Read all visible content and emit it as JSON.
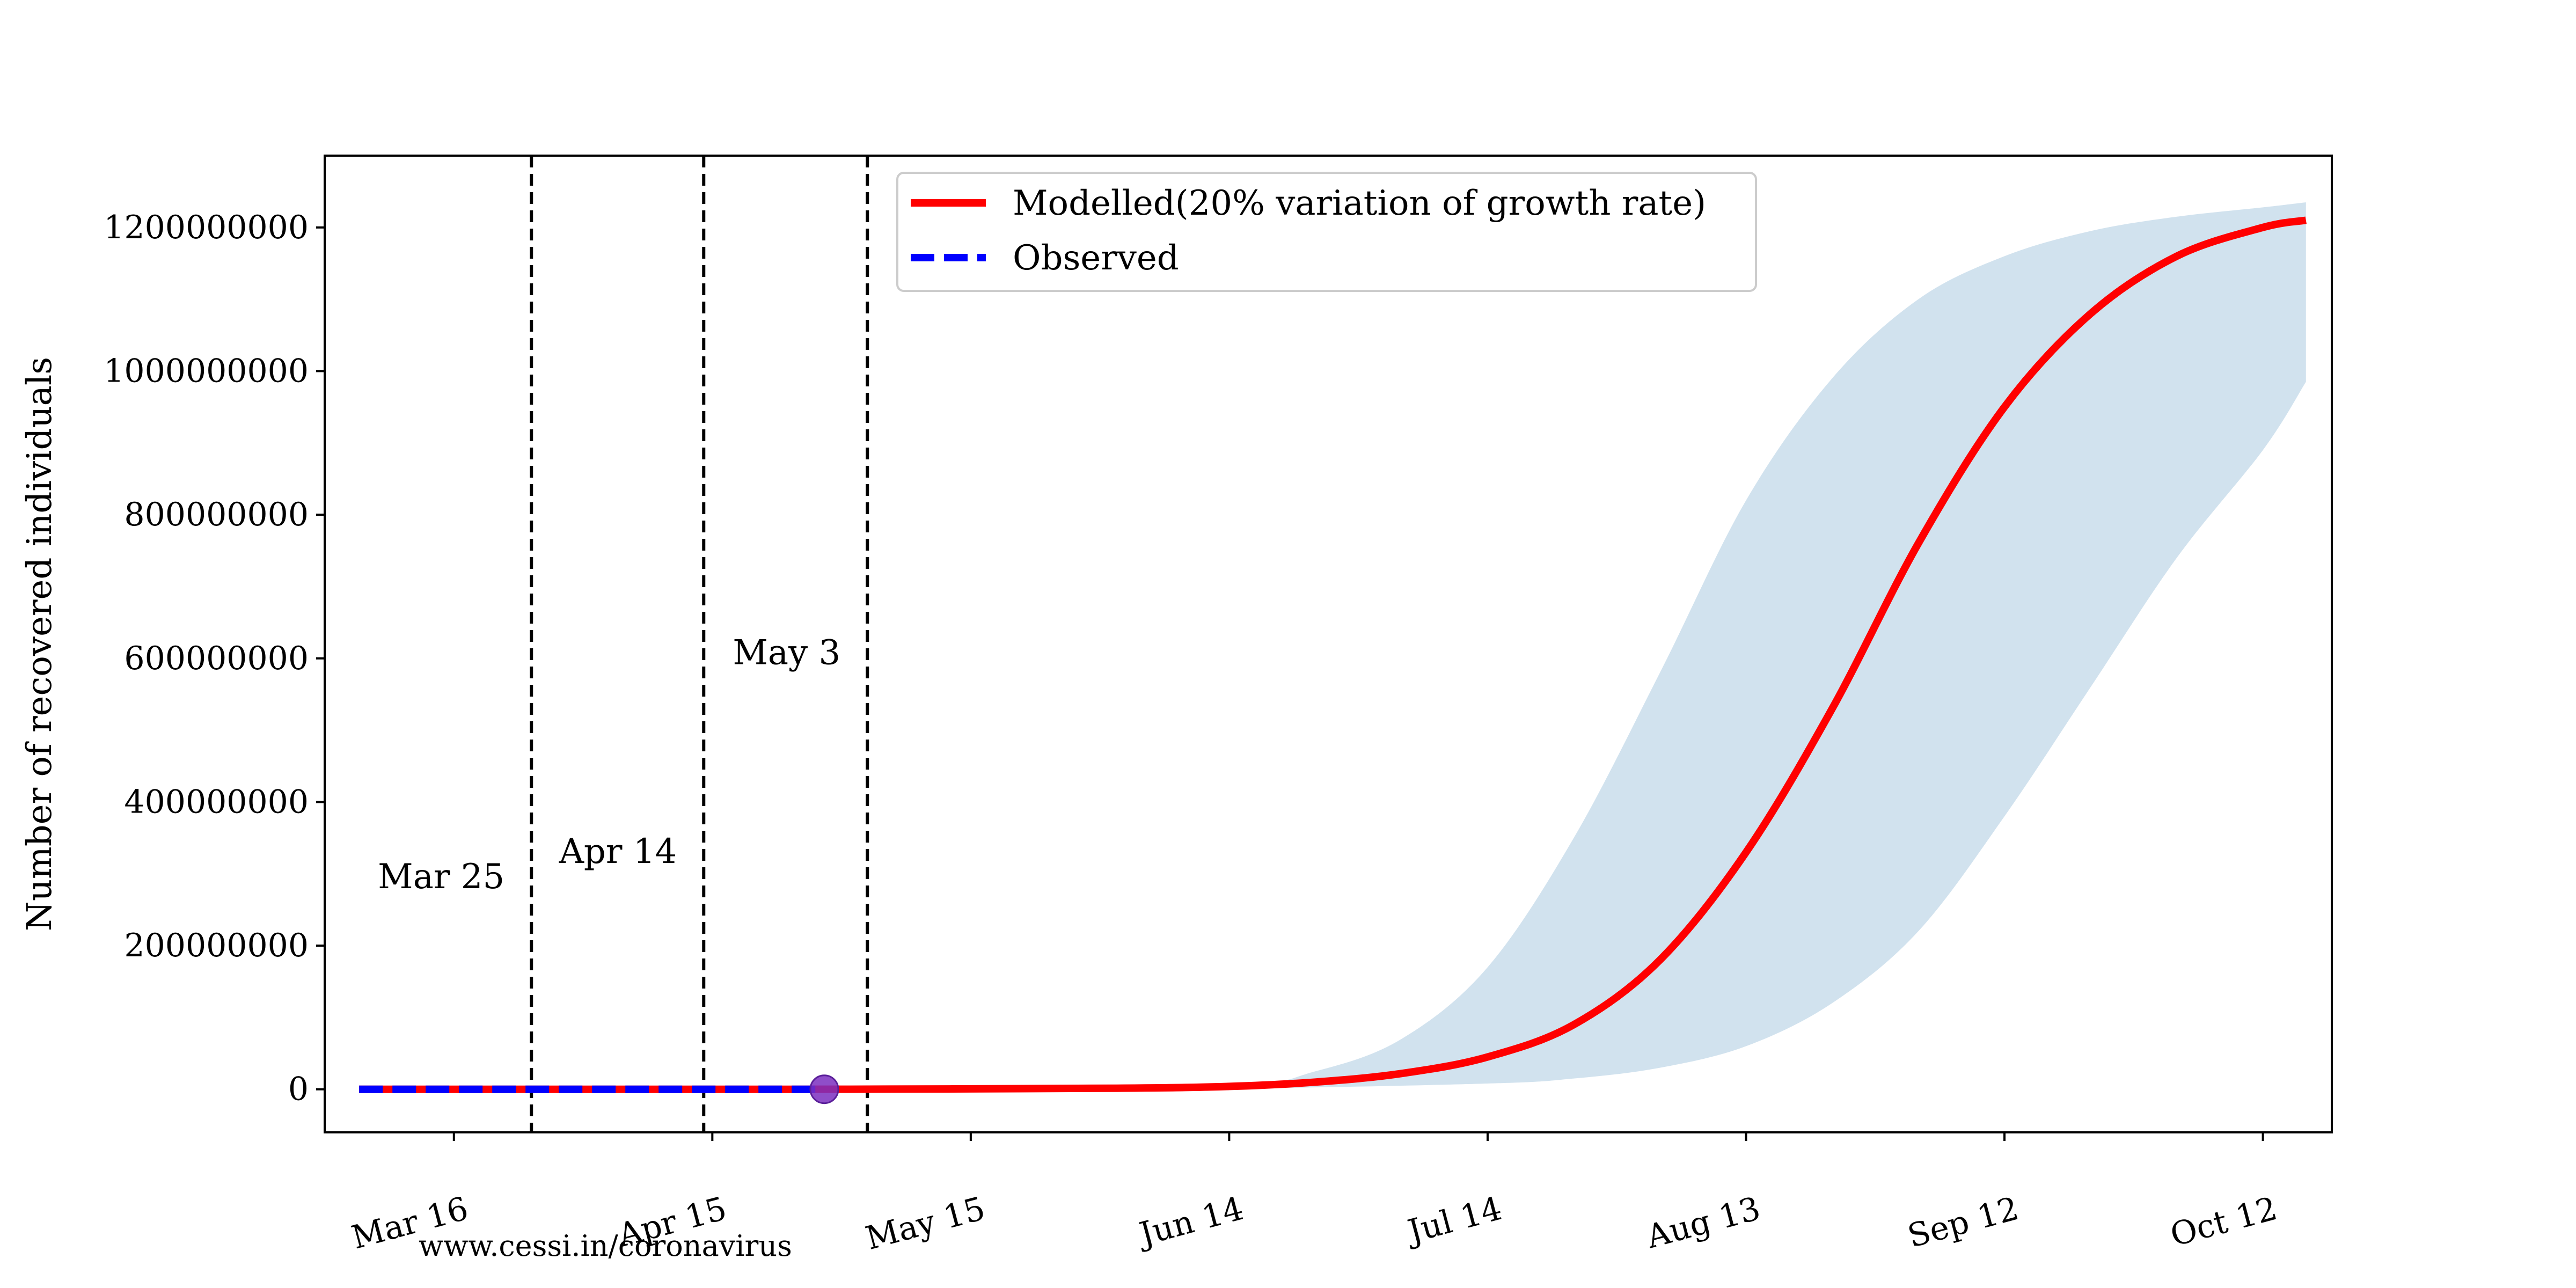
{
  "chart_data": {
    "type": "line",
    "title": "",
    "xlabel": "",
    "ylabel": "Number of recovered individuals",
    "x_type": "date",
    "x_domain": [
      "2020-03-01",
      "2020-10-20"
    ],
    "ylim": [
      -60000000,
      1300000000
    ],
    "xticks": [
      {
        "date": "2020-03-16",
        "label": "Mar 16"
      },
      {
        "date": "2020-04-15",
        "label": "Apr 15"
      },
      {
        "date": "2020-05-15",
        "label": "May 15"
      },
      {
        "date": "2020-06-14",
        "label": "Jun 14"
      },
      {
        "date": "2020-07-14",
        "label": "Jul 14"
      },
      {
        "date": "2020-08-13",
        "label": "Aug 13"
      },
      {
        "date": "2020-09-12",
        "label": "Sep 12"
      },
      {
        "date": "2020-10-12",
        "label": "Oct 12"
      }
    ],
    "yticks": [
      {
        "value": 0,
        "label": "0"
      },
      {
        "value": 200000000,
        "label": "200000000"
      },
      {
        "value": 400000000,
        "label": "400000000"
      },
      {
        "value": 600000000,
        "label": "600000000"
      },
      {
        "value": 800000000,
        "label": "800000000"
      },
      {
        "value": 1000000000,
        "label": "1000000000"
      },
      {
        "value": 1200000000,
        "label": "1200000000"
      }
    ],
    "vlines": [
      {
        "date": "2020-03-25",
        "label": "Mar 25",
        "label_y": 280000000
      },
      {
        "date": "2020-04-14",
        "label": "Apr 14",
        "label_y": 315000000
      },
      {
        "date": "2020-05-03",
        "label": "May 3",
        "label_y": 592000000
      }
    ],
    "series": [
      {
        "name": "Modelled(20% variation of growth rate)",
        "style": "solid",
        "color": "#ff0000",
        "points": [
          [
            "2020-03-05",
            0
          ],
          [
            "2020-04-01",
            0
          ],
          [
            "2020-05-01",
            100000
          ],
          [
            "2020-06-01",
            1500000
          ],
          [
            "2020-06-14",
            4000000
          ],
          [
            "2020-06-24",
            10000000
          ],
          [
            "2020-07-04",
            22000000
          ],
          [
            "2020-07-14",
            45000000
          ],
          [
            "2020-07-24",
            90000000
          ],
          [
            "2020-08-03",
            180000000
          ],
          [
            "2020-08-13",
            330000000
          ],
          [
            "2020-08-23",
            530000000
          ],
          [
            "2020-09-02",
            760000000
          ],
          [
            "2020-09-12",
            950000000
          ],
          [
            "2020-09-22",
            1080000000
          ],
          [
            "2020-10-02",
            1160000000
          ],
          [
            "2020-10-12",
            1200000000
          ],
          [
            "2020-10-17",
            1210000000
          ]
        ]
      },
      {
        "name": "Observed",
        "style": "dashed",
        "color": "#0000ff",
        "points": [
          [
            "2020-03-05",
            0
          ],
          [
            "2020-04-28",
            0
          ]
        ]
      }
    ],
    "band": {
      "color": "#d1e2ee",
      "upper": [
        [
          "2020-05-10",
          0
        ],
        [
          "2020-06-14",
          5000000
        ],
        [
          "2020-06-24",
          25000000
        ],
        [
          "2020-07-04",
          70000000
        ],
        [
          "2020-07-14",
          170000000
        ],
        [
          "2020-07-24",
          350000000
        ],
        [
          "2020-08-03",
          580000000
        ],
        [
          "2020-08-13",
          820000000
        ],
        [
          "2020-08-23",
          990000000
        ],
        [
          "2020-09-02",
          1100000000
        ],
        [
          "2020-09-12",
          1160000000
        ],
        [
          "2020-09-22",
          1195000000
        ],
        [
          "2020-10-02",
          1215000000
        ],
        [
          "2020-10-12",
          1228000000
        ],
        [
          "2020-10-17",
          1235000000
        ]
      ],
      "lower": [
        [
          "2020-05-10",
          0
        ],
        [
          "2020-06-14",
          1000000
        ],
        [
          "2020-07-14",
          8000000
        ],
        [
          "2020-07-24",
          15000000
        ],
        [
          "2020-08-03",
          30000000
        ],
        [
          "2020-08-13",
          60000000
        ],
        [
          "2020-08-23",
          120000000
        ],
        [
          "2020-09-02",
          220000000
        ],
        [
          "2020-09-12",
          380000000
        ],
        [
          "2020-09-22",
          560000000
        ],
        [
          "2020-10-02",
          740000000
        ],
        [
          "2020-10-12",
          890000000
        ],
        [
          "2020-10-17",
          985000000
        ]
      ]
    },
    "marker": {
      "date": "2020-04-28",
      "value": 0,
      "color": "#7b2fbf"
    },
    "legend": {
      "placement": "top-center"
    }
  },
  "footer": {
    "source": "www.cessi.in/coronavirus"
  }
}
